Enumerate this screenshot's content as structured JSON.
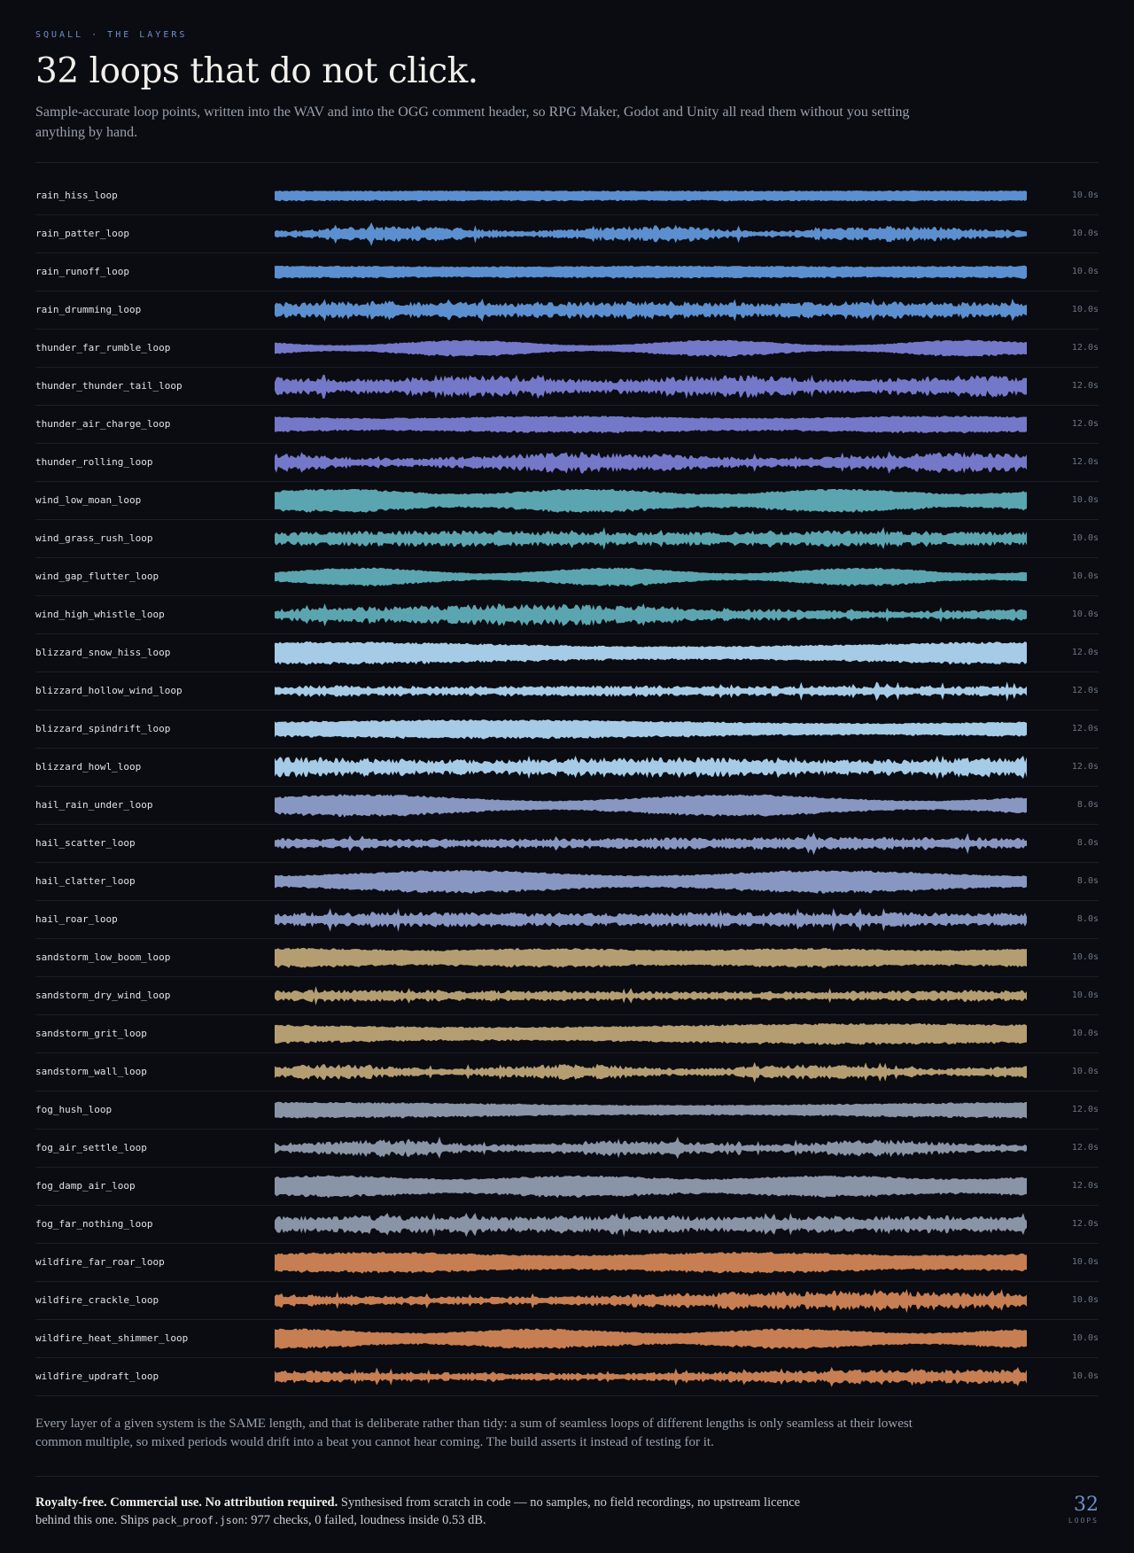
{
  "header": {
    "eyebrow": "SQUALL · THE LAYERS",
    "title": "32 loops that do not click.",
    "subtitle": "Sample-accurate loop points, written into the WAV and into the OGG comment header, so RPG Maker, Godot and Unity all read them without you setting anything by hand."
  },
  "loops": [
    {
      "name": "rain_hiss_loop",
      "duration": "10.0s",
      "color": "#5b8fcf"
    },
    {
      "name": "rain_patter_loop",
      "duration": "10.0s",
      "color": "#5b8fcf"
    },
    {
      "name": "rain_runoff_loop",
      "duration": "10.0s",
      "color": "#5b8fcf"
    },
    {
      "name": "rain_drumming_loop",
      "duration": "10.0s",
      "color": "#5b8fcf"
    },
    {
      "name": "thunder_far_rumble_loop",
      "duration": "12.0s",
      "color": "#7478c9"
    },
    {
      "name": "thunder_thunder_tail_loop",
      "duration": "12.0s",
      "color": "#7478c9"
    },
    {
      "name": "thunder_air_charge_loop",
      "duration": "12.0s",
      "color": "#7478c9"
    },
    {
      "name": "thunder_rolling_loop",
      "duration": "12.0s",
      "color": "#7478c9"
    },
    {
      "name": "wind_low_moan_loop",
      "duration": "10.0s",
      "color": "#5ba5b1"
    },
    {
      "name": "wind_grass_rush_loop",
      "duration": "10.0s",
      "color": "#5ba5b1"
    },
    {
      "name": "wind_gap_flutter_loop",
      "duration": "10.0s",
      "color": "#5ba5b1"
    },
    {
      "name": "wind_high_whistle_loop",
      "duration": "10.0s",
      "color": "#5ba5b1"
    },
    {
      "name": "blizzard_snow_hiss_loop",
      "duration": "12.0s",
      "color": "#a6cbe6"
    },
    {
      "name": "blizzard_hollow_wind_loop",
      "duration": "12.0s",
      "color": "#a6cbe6"
    },
    {
      "name": "blizzard_spindrift_loop",
      "duration": "12.0s",
      "color": "#a6cbe6"
    },
    {
      "name": "blizzard_howl_loop",
      "duration": "12.0s",
      "color": "#a6cbe6"
    },
    {
      "name": "hail_rain_under_loop",
      "duration": "8.0s",
      "color": "#8797c2"
    },
    {
      "name": "hail_scatter_loop",
      "duration": "8.0s",
      "color": "#8797c2"
    },
    {
      "name": "hail_clatter_loop",
      "duration": "8.0s",
      "color": "#8797c2"
    },
    {
      "name": "hail_roar_loop",
      "duration": "8.0s",
      "color": "#8797c2"
    },
    {
      "name": "sandstorm_low_boom_loop",
      "duration": "10.0s",
      "color": "#b59d72"
    },
    {
      "name": "sandstorm_dry_wind_loop",
      "duration": "10.0s",
      "color": "#b59d72"
    },
    {
      "name": "sandstorm_grit_loop",
      "duration": "10.0s",
      "color": "#b59d72"
    },
    {
      "name": "sandstorm_wall_loop",
      "duration": "10.0s",
      "color": "#b59d72"
    },
    {
      "name": "fog_hush_loop",
      "duration": "12.0s",
      "color": "#8994a7"
    },
    {
      "name": "fog_air_settle_loop",
      "duration": "12.0s",
      "color": "#8994a7"
    },
    {
      "name": "fog_damp_air_loop",
      "duration": "12.0s",
      "color": "#8994a7"
    },
    {
      "name": "fog_far_nothing_loop",
      "duration": "12.0s",
      "color": "#8994a7"
    },
    {
      "name": "wildfire_far_roar_loop",
      "duration": "10.0s",
      "color": "#c67e52"
    },
    {
      "name": "wildfire_crackle_loop",
      "duration": "10.0s",
      "color": "#c67e52"
    },
    {
      "name": "wildfire_heat_shimmer_loop",
      "duration": "10.0s",
      "color": "#c67e52"
    },
    {
      "name": "wildfire_updraft_loop",
      "duration": "10.0s",
      "color": "#c67e52"
    }
  ],
  "note": "Every layer of a given system is the SAME length, and that is deliberate rather than tidy: a sum of seamless loops of different lengths is only seamless at their lowest common multiple, so mixed periods would drift into a beat you cannot hear coming. The build asserts it instead of testing for it.",
  "footer": {
    "bold": "Royalty-free. Commercial use. No attribution required.",
    "text_before": "Synthesised from scratch in code — no samples, no field recordings, no upstream licence behind this one. Ships",
    "code": "pack_proof.json",
    "text_after": ": 977 checks, 0 failed, loudness inside 0.53 dB.",
    "count": "32",
    "count_label": "LOOPS"
  }
}
